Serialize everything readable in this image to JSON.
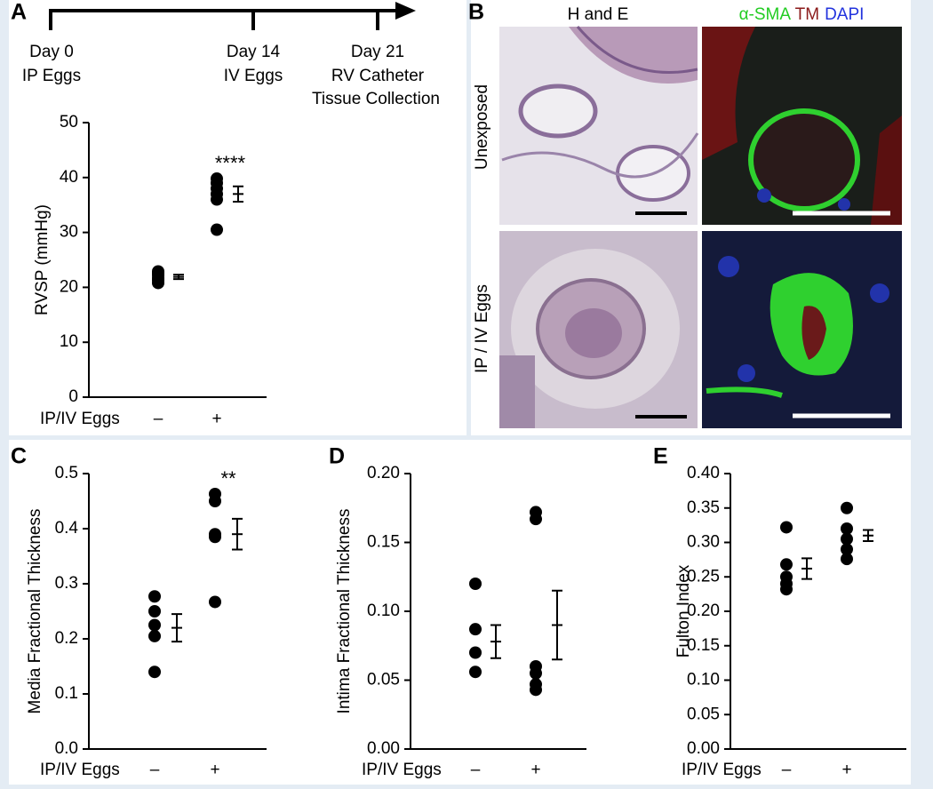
{
  "timeline": {
    "label": "A",
    "events": [
      {
        "day": "Day 0",
        "lines": [
          "IP Eggs"
        ]
      },
      {
        "day": "Day 14",
        "lines": [
          "IV Eggs"
        ]
      },
      {
        "day": "Day 21",
        "lines": [
          "RV Catheter",
          "Tissue Collection"
        ]
      }
    ]
  },
  "panel_b": {
    "label": "B",
    "column_he": "H and E",
    "stain_labels": [
      {
        "text": "α-SMA",
        "color": "#22cc22"
      },
      {
        "text": "TM",
        "color": "#8b1a1a"
      },
      {
        "text": "DAPI",
        "color": "#2233dd"
      }
    ],
    "rows": [
      "Unexposed",
      "IP / IV Eggs"
    ]
  },
  "chart_data": [
    {
      "type": "dot",
      "label": "A",
      "ylabel": "RVSP (mmHg)",
      "x_title": "IP/IV Eggs",
      "categories": [
        "–",
        "+"
      ],
      "ylim": [
        0,
        50
      ],
      "yticks": [
        0,
        10,
        20,
        30,
        40,
        50
      ],
      "groups": [
        {
          "values": [
            20.8,
            21.3,
            21.7,
            22.2,
            22.6,
            22.9
          ],
          "mean": 21.9,
          "error": 0.4
        },
        {
          "values": [
            30.5,
            36,
            37,
            38,
            39,
            39.8
          ],
          "mean": 37,
          "error": 1.4,
          "annotation": "****"
        }
      ],
      "color": "#000000"
    },
    {
      "type": "dot",
      "label": "C",
      "ylabel": "Media Fractional Thickness",
      "x_title": "IP/IV Eggs",
      "categories": [
        "–",
        "+"
      ],
      "ylim": [
        0,
        0.5
      ],
      "yticks": [
        {
          "value": 0,
          "label": "0.0"
        },
        0.1,
        0.2,
        0.3,
        0.4,
        0.5
      ],
      "groups": [
        {
          "values": [
            0.14,
            0.205,
            0.225,
            0.25,
            0.277
          ],
          "mean": 0.22,
          "error": 0.025
        },
        {
          "values": [
            0.267,
            0.385,
            0.39,
            0.45,
            0.463
          ],
          "mean": 0.39,
          "error": 0.028,
          "annotation": "**"
        }
      ],
      "color": "#000000"
    },
    {
      "type": "dot",
      "label": "D",
      "ylabel": "Intima Fractional Thickness",
      "x_title": "IP/IV Eggs",
      "categories": [
        "–",
        "+"
      ],
      "ylim": [
        0,
        0.2
      ],
      "yticks": [
        {
          "value": 0,
          "label": "0.00"
        },
        0.05,
        {
          "value": 0.1,
          "label": "0.10"
        },
        0.15,
        {
          "value": 0.2,
          "label": "0.20"
        }
      ],
      "groups": [
        {
          "values": [
            0.056,
            0.07,
            0.087,
            0.12
          ],
          "mean": 0.078,
          "error": 0.012
        },
        {
          "values": [
            0.043,
            0.047,
            0.055,
            0.06,
            0.167,
            0.172
          ],
          "mean": 0.09,
          "error": 0.025
        }
      ],
      "color": "#000000"
    },
    {
      "type": "dot",
      "label": "E",
      "ylabel": "Fulton Index",
      "x_title": "IP/IV Eggs",
      "categories": [
        "–",
        "+"
      ],
      "ylim": [
        0,
        0.4
      ],
      "yticks": [
        {
          "value": 0,
          "label": "0.00"
        },
        0.05,
        {
          "value": 0.1,
          "label": "0.10"
        },
        0.15,
        {
          "value": 0.2,
          "label": "0.20"
        },
        0.25,
        {
          "value": 0.3,
          "label": "0.30"
        },
        0.35,
        {
          "value": 0.4,
          "label": "0.40"
        }
      ],
      "groups": [
        {
          "values": [
            0.232,
            0.24,
            0.25,
            0.268,
            0.322
          ],
          "mean": 0.262,
          "error": 0.015
        },
        {
          "values": [
            0.276,
            0.29,
            0.305,
            0.32,
            0.35
          ],
          "mean": 0.31,
          "error": 0.008
        }
      ],
      "color": "#000000"
    }
  ]
}
